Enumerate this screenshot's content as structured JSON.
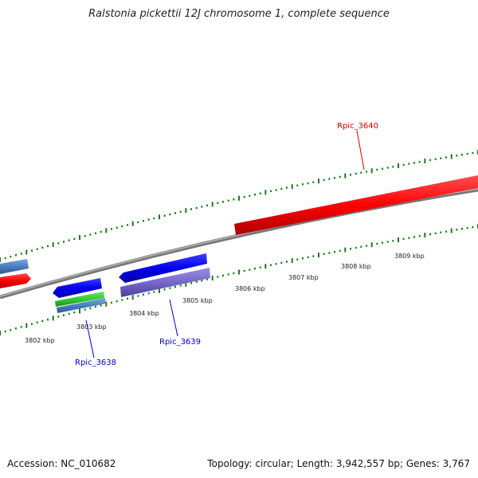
{
  "title": "Ralstonia pickettii 12J chromosome 1, complete sequence",
  "footer": {
    "accession": "Accession: NC_010682",
    "topology": "Topology: circular; Length: 3,942,557 bp; Genes: 3,767"
  },
  "ticks": [
    "3802 kbp",
    "3803 kbp",
    "3804 kbp",
    "3805 kbp",
    "3806 kbp",
    "3807 kbp",
    "3808 kbp",
    "3809 kbp"
  ],
  "genes": [
    {
      "name": "Rpic_3638",
      "color": "#0000cc"
    },
    {
      "name": "Rpic_3639",
      "color": "#0000cc"
    },
    {
      "name": "Rpic_3640",
      "color": "#cc0000"
    }
  ],
  "colors": {
    "forward_strand": "#ff0000",
    "reverse_strand": "#0000ff",
    "pale_blue": "#4a7fc0",
    "green": "#33cc33",
    "purple": "#7766cc",
    "backbone": "#888888",
    "ticks": "#1a7a1a"
  }
}
